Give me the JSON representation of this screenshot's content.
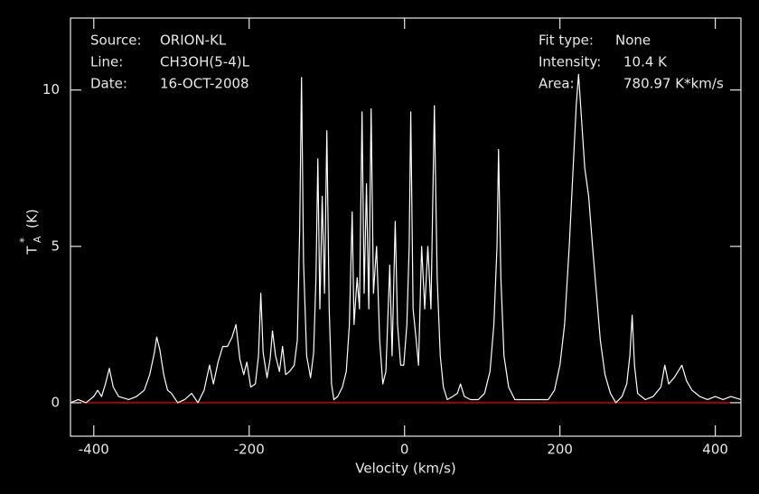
{
  "chart_data": {
    "type": "line",
    "xlabel": "Velocity (km/s)",
    "ylabel": {
      "main": "T",
      "sub": "A",
      "sup": "*",
      "unit": "(K)"
    },
    "annotations_left": [
      {
        "label": "Source:",
        "value": "ORION-KL"
      },
      {
        "label": "Line:",
        "value": "CH3OH(5-4)L"
      },
      {
        "label": "Date:",
        "value": "16-OCT-2008"
      }
    ],
    "annotations_right": [
      {
        "label": "Fit type:",
        "value": "None"
      },
      {
        "label": "Intensity:",
        "value": "10.4 K"
      },
      {
        "label": "Area:",
        "value": "780.97 K*km/s"
      }
    ],
    "xlim": [
      -430,
      433
    ],
    "ylim": [
      -1.07,
      12.3
    ],
    "xticks": [
      -400,
      -200,
      0,
      200,
      400
    ],
    "yticks": [
      0,
      5,
      10
    ],
    "baseline": {
      "value": 0,
      "color": "#ff0000"
    },
    "series": [
      {
        "name": "spectrum",
        "color": "#ffffff",
        "x": [
          -430,
          -420,
          -410,
          -400,
          -395,
          -390,
          -385,
          -380,
          -375,
          -368,
          -355,
          -345,
          -335,
          -328,
          -322,
          -319,
          -315,
          -310,
          -305,
          -300,
          -292,
          -283,
          -274,
          -266,
          -258,
          -251,
          -246,
          -240,
          -234,
          -228,
          -222,
          -217,
          -212,
          -207,
          -203,
          -198,
          -192,
          -188,
          -185,
          -182,
          -177,
          -173,
          -170,
          -166,
          -161,
          -157,
          -153,
          -148,
          -142,
          -138,
          -135,
          -132.6,
          -130,
          -126,
          -121,
          -117,
          -114,
          -111.6,
          -109,
          -106,
          -103,
          -100,
          -97,
          -94,
          -91,
          -86,
          -80,
          -75,
          -71,
          -67.4,
          -65,
          -61,
          -58,
          -54.7,
          -52,
          -49,
          -46,
          -43,
          -40,
          -36,
          -32,
          -28,
          -24,
          -19,
          -16,
          -12,
          -9,
          -5,
          -1,
          3,
          6,
          8,
          11,
          15,
          18,
          22,
          26,
          30,
          34,
          38.4,
          42,
          46,
          50,
          55,
          62,
          68,
          72,
          77,
          85,
          95,
          103,
          110,
          115,
          119,
          121,
          124,
          128,
          134,
          142,
          155,
          170,
          185,
          193,
          200,
          206,
          212,
          217,
          221,
          224,
          228,
          232,
          237,
          242,
          247,
          252,
          258,
          265,
          272,
          280,
          286,
          290,
          293,
          296,
          300,
          310,
          320,
          330,
          335,
          340,
          347,
          352,
          357,
          363,
          370,
          380,
          390,
          400,
          410,
          420,
          433
        ],
        "values": [
          0,
          0.1,
          0,
          0.2,
          0.4,
          0.2,
          0.6,
          1.1,
          0.5,
          0.2,
          0.1,
          0.2,
          0.4,
          0.9,
          1.6,
          2.1,
          1.7,
          0.9,
          0.4,
          0.3,
          0,
          0.1,
          0.3,
          0,
          0.4,
          1.2,
          0.6,
          1.3,
          1.8,
          1.8,
          2.1,
          2.5,
          1.4,
          0.9,
          1.3,
          0.5,
          0.6,
          1.5,
          3.5,
          1.6,
          0.8,
          1.4,
          2.3,
          1.5,
          1,
          1.8,
          0.9,
          1,
          1.2,
          2,
          5.5,
          10.4,
          4.5,
          1.5,
          0.8,
          1.6,
          4,
          7.8,
          3,
          6.6,
          3.5,
          8.7,
          3,
          0.6,
          0.1,
          0.2,
          0.5,
          1,
          2.5,
          6.1,
          2.5,
          4,
          3,
          9.3,
          3.5,
          7,
          3,
          9.4,
          3.5,
          5,
          2,
          0.6,
          1,
          4.4,
          1.5,
          5.8,
          2.5,
          1.2,
          1.2,
          2.5,
          5,
          9.3,
          3,
          2,
          1.2,
          5,
          3,
          5,
          3,
          9.5,
          4,
          1.5,
          0.5,
          0.1,
          0.2,
          0.3,
          0.6,
          0.2,
          0.1,
          0.1,
          0.3,
          1,
          2.5,
          5,
          8.1,
          4,
          1.5,
          0.5,
          0.1,
          0.1,
          0.1,
          0.1,
          0.4,
          1.2,
          2.5,
          5,
          7.5,
          9.5,
          10.5,
          9,
          7.5,
          6.6,
          5,
          3.5,
          2,
          0.9,
          0.3,
          0,
          0.2,
          0.6,
          1.5,
          2.8,
          1.2,
          0.3,
          0.1,
          0.2,
          0.5,
          1.2,
          0.6,
          0.8,
          1,
          1.2,
          0.7,
          0.4,
          0.2,
          0.1,
          0.2,
          0.1,
          0.2,
          0.1
        ]
      }
    ]
  }
}
